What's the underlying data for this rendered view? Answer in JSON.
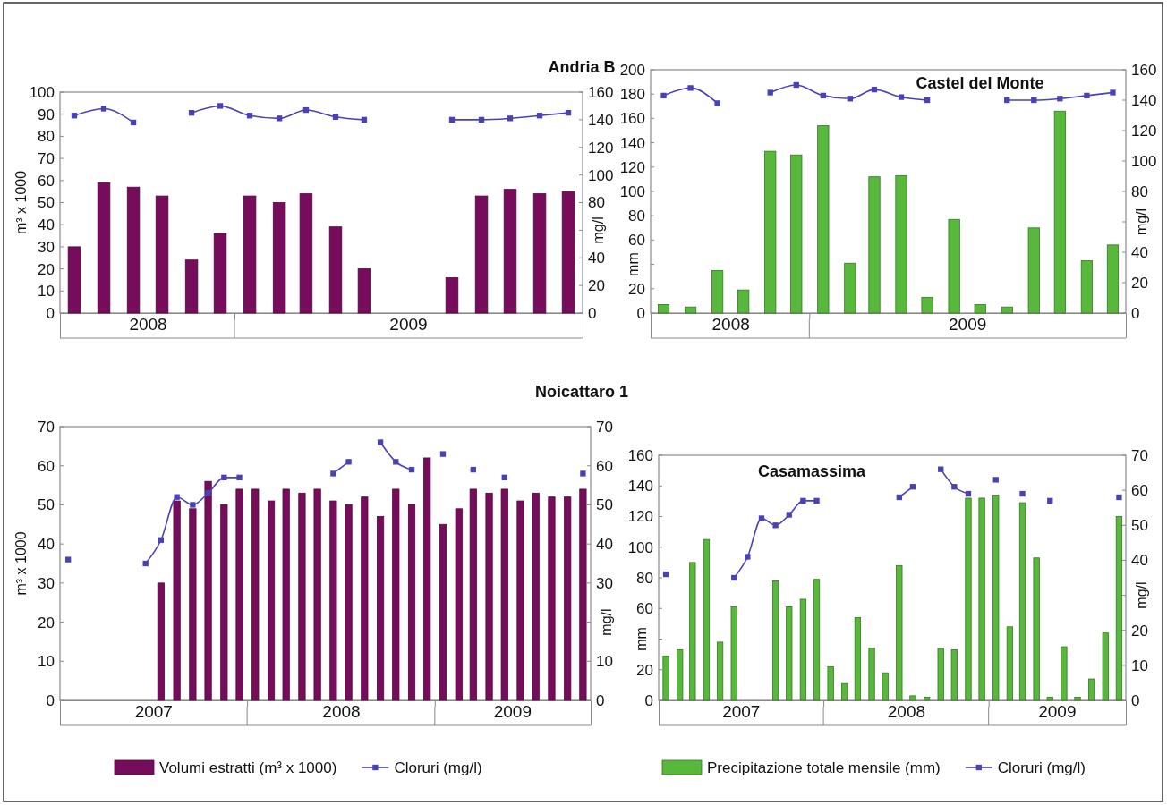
{
  "chart_data": [
    {
      "type": "bar",
      "title": "Andria B",
      "ylabel": "m³ x 1000",
      "y2label": "mg/l",
      "x": [
        "2008-07",
        "2008-08",
        "2008-09",
        "2008-10",
        "2008-11",
        "2008-12",
        "2009-01",
        "2009-02",
        "2009-03",
        "2009-04",
        "2009-05",
        "2009-06",
        "2009-07",
        "2009-08",
        "2009-09",
        "2009-10",
        "2009-11",
        "2009-12"
      ],
      "xlim": [
        "2008-06-16",
        "2009-12-16"
      ],
      "xticks": [
        {
          "value": "2008-09-16",
          "label": "2008"
        },
        {
          "value": "2008-12-16",
          "label": null
        },
        {
          "value": "2009-06-16",
          "label": "2009"
        }
      ],
      "ylim": [
        0,
        100
      ],
      "yticks": [
        0,
        10,
        20,
        30,
        40,
        50,
        60,
        70,
        80,
        90,
        100
      ],
      "y2lim": [
        0,
        160
      ],
      "y2ticks": [
        0,
        20,
        40,
        {
          "value": 60,
          "label": null
        },
        80,
        100,
        120,
        140,
        160
      ],
      "series": [
        {
          "type": "bar",
          "color": "#780c5c",
          "values": [
            30,
            59,
            57,
            53,
            24,
            36,
            53,
            50,
            54,
            39,
            20,
            null,
            null,
            16,
            53,
            56,
            54,
            55
          ]
        },
        {
          "type": "line",
          "axis": "y2",
          "marker": "square",
          "color": "#4a40b8",
          "values": [
            143,
            148,
            138,
            null,
            145,
            150,
            143,
            141,
            147,
            142,
            140,
            null,
            null,
            140,
            140,
            141,
            143,
            145
          ]
        }
      ]
    },
    {
      "type": "bar",
      "title": "Castel del Monte",
      "ylabel": "mm",
      "y2label": "mg/l",
      "x": [
        "2008-07",
        "2008-08",
        "2008-09",
        "2008-10",
        "2008-11",
        "2008-12",
        "2009-01",
        "2009-02",
        "2009-03",
        "2009-04",
        "2009-05",
        "2009-06",
        "2009-07",
        "2009-08",
        "2009-09",
        "2009-10",
        "2009-11",
        "2009-12"
      ],
      "xlim": [
        "2008-06-16",
        "2009-12-16"
      ],
      "xticks": [
        {
          "value": "2008-09-16",
          "label": "2008"
        },
        {
          "value": "2008-12-16",
          "label": null
        },
        {
          "value": "2009-06-16",
          "label": "2009"
        }
      ],
      "ylim": [
        0,
        200
      ],
      "yticks": [
        0,
        20,
        {
          "value": 40,
          "label": null
        },
        60,
        80,
        100,
        120,
        140,
        160,
        180,
        200
      ],
      "y2lim": [
        0,
        160
      ],
      "y2ticks": [
        0,
        20,
        40,
        {
          "value": 60,
          "label": null
        },
        80,
        100,
        120,
        140,
        160
      ],
      "series": [
        {
          "type": "bar",
          "color": "#57b83c",
          "values": [
            7,
            5,
            35,
            19,
            133,
            130,
            154,
            41,
            112,
            113,
            13,
            77,
            7,
            5,
            70,
            166,
            43,
            56
          ]
        },
        {
          "type": "line",
          "axis": "y2",
          "marker": "square",
          "color": "#4a40b8",
          "values": [
            143,
            148,
            138,
            null,
            145,
            150,
            143,
            141,
            147,
            142,
            140,
            null,
            null,
            140,
            140,
            141,
            143,
            145
          ]
        }
      ]
    },
    {
      "type": "bar",
      "title": "Noicattaro 1",
      "ylabel": "m³ x 1000",
      "y2label": "mg/l",
      "legend": "bottom",
      "x": [
        "2007-01",
        "2007-02",
        "2007-03",
        "2007-04",
        "2007-05",
        "2007-06",
        "2007-07",
        "2007-08",
        "2007-09",
        "2007-10",
        "2007-11",
        "2007-12",
        "2008-01",
        "2008-02",
        "2008-03",
        "2008-04",
        "2008-05",
        "2008-06",
        "2008-07",
        "2008-08",
        "2008-09",
        "2008-10",
        "2008-11",
        "2008-12",
        "2009-01",
        "2009-02",
        "2009-03",
        "2009-04",
        "2009-05",
        "2009-06",
        "2009-07",
        "2009-08",
        "2009-09",
        "2009-10"
      ],
      "xlim": [
        "2006-12-16",
        "2009-10-16"
      ],
      "xticks": [
        {
          "value": "2007-06-16",
          "label": "2007"
        },
        {
          "value": "2007-12-16",
          "label": null
        },
        {
          "value": "2008-06-16",
          "label": "2008"
        },
        {
          "value": "2008-12-16",
          "label": null
        },
        {
          "value": "2009-05-16",
          "label": "2009"
        }
      ],
      "ylim": [
        0,
        70
      ],
      "yticks": [
        0,
        10,
        20,
        30,
        40,
        50,
        60,
        70
      ],
      "y2lim": [
        0,
        70
      ],
      "y2ticks": [
        0,
        10,
        {
          "value": 20,
          "label": null
        },
        30,
        40,
        50,
        60,
        70
      ],
      "series": [
        {
          "type": "bar",
          "name": "Volumi estratti (m³ x 1000)",
          "color": "#780c5c",
          "values": [
            null,
            null,
            null,
            null,
            null,
            null,
            30,
            51,
            49,
            56,
            50,
            54,
            54,
            51,
            54,
            53,
            54,
            51,
            50,
            52,
            47,
            54,
            50,
            62,
            45,
            49,
            54,
            53,
            54,
            51,
            53,
            52,
            52,
            54
          ]
        },
        {
          "type": "line",
          "name": "Cloruri (mg/l)",
          "axis": "y2",
          "marker": "square",
          "color": "#4a40b8",
          "values": [
            36,
            null,
            null,
            null,
            null,
            35,
            41,
            52,
            50,
            53,
            57,
            57,
            null,
            null,
            null,
            null,
            null,
            58,
            61,
            null,
            66,
            61,
            59,
            null,
            63,
            null,
            59,
            null,
            57,
            null,
            null,
            null,
            null,
            58
          ]
        }
      ]
    },
    {
      "type": "bar",
      "title": "Casamassima",
      "ylabel": "mm",
      "y2label": "mg/l",
      "legend": "bottom",
      "x": [
        "2007-01",
        "2007-02",
        "2007-03",
        "2007-04",
        "2007-05",
        "2007-06",
        "2007-07",
        "2007-08",
        "2007-09",
        "2007-10",
        "2007-11",
        "2007-12",
        "2008-01",
        "2008-02",
        "2008-03",
        "2008-04",
        "2008-05",
        "2008-06",
        "2008-07",
        "2008-08",
        "2008-09",
        "2008-10",
        "2008-11",
        "2008-12",
        "2009-01",
        "2009-02",
        "2009-03",
        "2009-04",
        "2009-05",
        "2009-06",
        "2009-07",
        "2009-08",
        "2009-09",
        "2009-10"
      ],
      "xlim": [
        "2006-12-16",
        "2009-10-16"
      ],
      "xticks": [
        {
          "value": "2007-06-16",
          "label": "2007"
        },
        {
          "value": "2007-12-16",
          "label": null
        },
        {
          "value": "2008-06-16",
          "label": "2008"
        },
        {
          "value": "2008-12-16",
          "label": null
        },
        {
          "value": "2009-05-16",
          "label": "2009"
        }
      ],
      "ylim": [
        0,
        160
      ],
      "yticks": [
        0,
        20,
        {
          "value": 40,
          "label": null
        },
        60,
        80,
        100,
        120,
        140,
        160
      ],
      "y2lim": [
        0,
        70
      ],
      "y2ticks": [
        0,
        10,
        20,
        {
          "value": 30,
          "label": null
        },
        40,
        50,
        60,
        70
      ],
      "series": [
        {
          "type": "bar",
          "name": "Precipitazione totale mensile (mm)",
          "color": "#57b83c",
          "values": [
            29,
            33,
            90,
            105,
            38,
            61,
            null,
            null,
            78,
            61,
            66,
            79,
            22,
            11,
            54,
            34,
            18,
            88,
            3,
            2,
            34,
            33,
            132,
            132,
            134,
            48,
            129,
            93,
            2,
            35,
            2,
            14,
            44,
            120
          ]
        },
        {
          "type": "line",
          "name": "Cloruri (mg/l)",
          "axis": "y2",
          "marker": "square",
          "color": "#4a40b8",
          "values": [
            36,
            null,
            null,
            null,
            null,
            35,
            41,
            52,
            50,
            53,
            57,
            57,
            null,
            null,
            null,
            null,
            null,
            58,
            61,
            null,
            66,
            61,
            59,
            null,
            63,
            null,
            59,
            null,
            57,
            null,
            null,
            null,
            null,
            58
          ]
        }
      ]
    }
  ]
}
